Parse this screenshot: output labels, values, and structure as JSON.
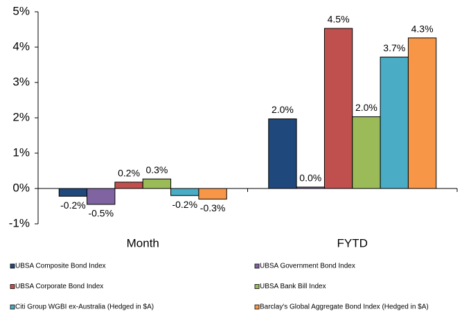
{
  "chart_data": {
    "type": "bar",
    "categories": [
      "Month",
      "FYTD"
    ],
    "series": [
      {
        "name": "UBSA Composite Bond Index",
        "color": "#1f497d",
        "values": [
          -0.22,
          1.97
        ],
        "value_labels": [
          "-0.2%",
          "2.0%"
        ]
      },
      {
        "name": "UBSA Government Bond Index",
        "color": "#8064a2",
        "values": [
          -0.45,
          0.04
        ],
        "value_labels": [
          "-0.5%",
          "0.0%"
        ]
      },
      {
        "name": "UBSA Corporate Bond Index",
        "color": "#c0504d",
        "values": [
          0.18,
          4.53
        ],
        "value_labels": [
          "0.2%",
          "4.5%"
        ]
      },
      {
        "name": "UBSA Bank Bill Index",
        "color": "#9bbb59",
        "values": [
          0.27,
          2.03
        ],
        "value_labels": [
          "0.3%",
          "2.0%"
        ]
      },
      {
        "name": "Citi Group WGBI ex-Australia (Hedged in $A)",
        "color": "#4bacc6",
        "values": [
          -0.2,
          3.72
        ],
        "value_labels": [
          "-0.2%",
          "3.7%"
        ]
      },
      {
        "name": "Barclay's Global Aggregate Bond Index (Hedged in $A)",
        "color": "#f79646",
        "values": [
          -0.3,
          4.26
        ],
        "value_labels": [
          "-0.3%",
          "4.3%"
        ]
      }
    ],
    "ylim": [
      -1,
      5
    ],
    "yticks": [
      {
        "value": -1,
        "label": "-1%"
      },
      {
        "value": 0,
        "label": "0%"
      },
      {
        "value": 1,
        "label": "1%"
      },
      {
        "value": 2,
        "label": "2%"
      },
      {
        "value": 3,
        "label": "3%"
      },
      {
        "value": 4,
        "label": "4%"
      },
      {
        "value": 5,
        "label": "5%"
      }
    ],
    "grid": false
  }
}
